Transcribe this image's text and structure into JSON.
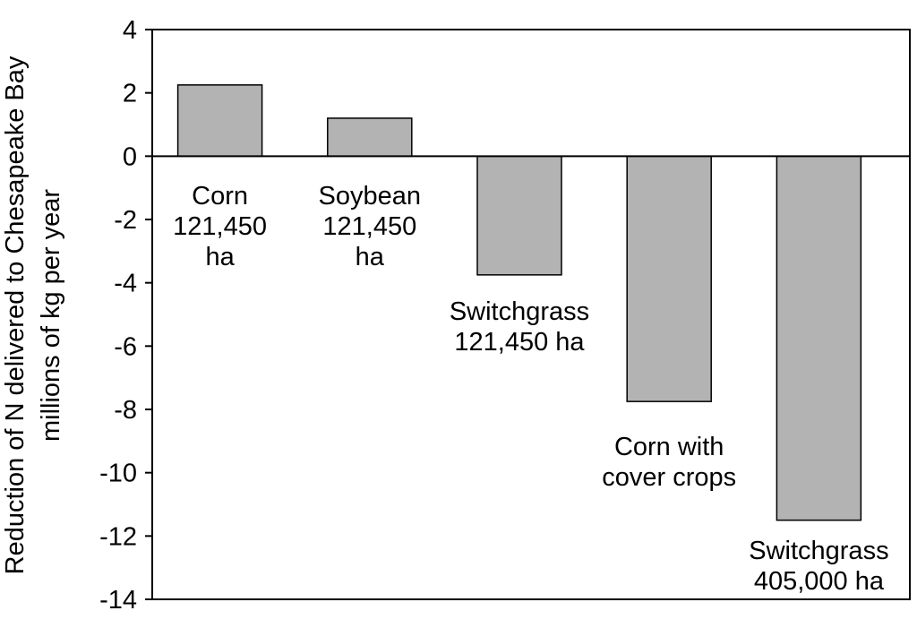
{
  "chart_data": {
    "type": "bar",
    "title": "",
    "xlabel": "",
    "ylabel": [
      "Reduction of N delivered to Chesapeake Bay",
      "millions of kg per year"
    ],
    "ylim": [
      -14,
      4
    ],
    "yticks": [
      4,
      2,
      0,
      -2,
      -4,
      -6,
      -8,
      -10,
      -12,
      -14
    ],
    "grid": false,
    "legend": "none",
    "bar_color": "#b3b3b3",
    "bar_edge_color": "#000000",
    "categories": [
      [
        "Corn",
        "121,450",
        "ha"
      ],
      [
        "Soybean",
        "121,450",
        "ha"
      ],
      [
        "Switchgrass",
        "121,450 ha"
      ],
      [
        "Corn with",
        "cover crops"
      ],
      [
        "Switchgrass",
        "405,000 ha"
      ]
    ],
    "values": [
      2.25,
      1.2,
      -3.75,
      -7.75,
      -11.5
    ]
  }
}
